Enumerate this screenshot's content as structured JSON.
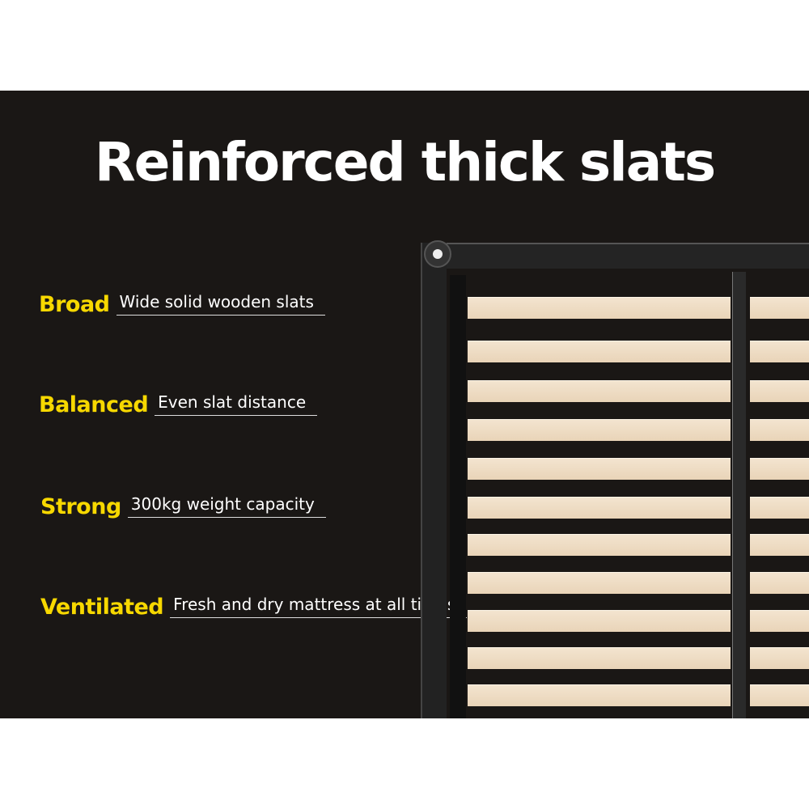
{
  "title": "Reinforced thick slats",
  "features": [
    {
      "name": "Broad",
      "desc": "Wide solid wooden slats"
    },
    {
      "name": "Balanced",
      "desc": "Even slat distance"
    },
    {
      "name": "Strong",
      "desc": "300kg weight capacity"
    },
    {
      "name": "Ventilated",
      "desc": "Fresh and dry mattress at all times"
    }
  ],
  "colors": {
    "background": "#1a1715",
    "accent": "#f7d800",
    "slat": "#efdcc3",
    "frame": "#222222"
  }
}
